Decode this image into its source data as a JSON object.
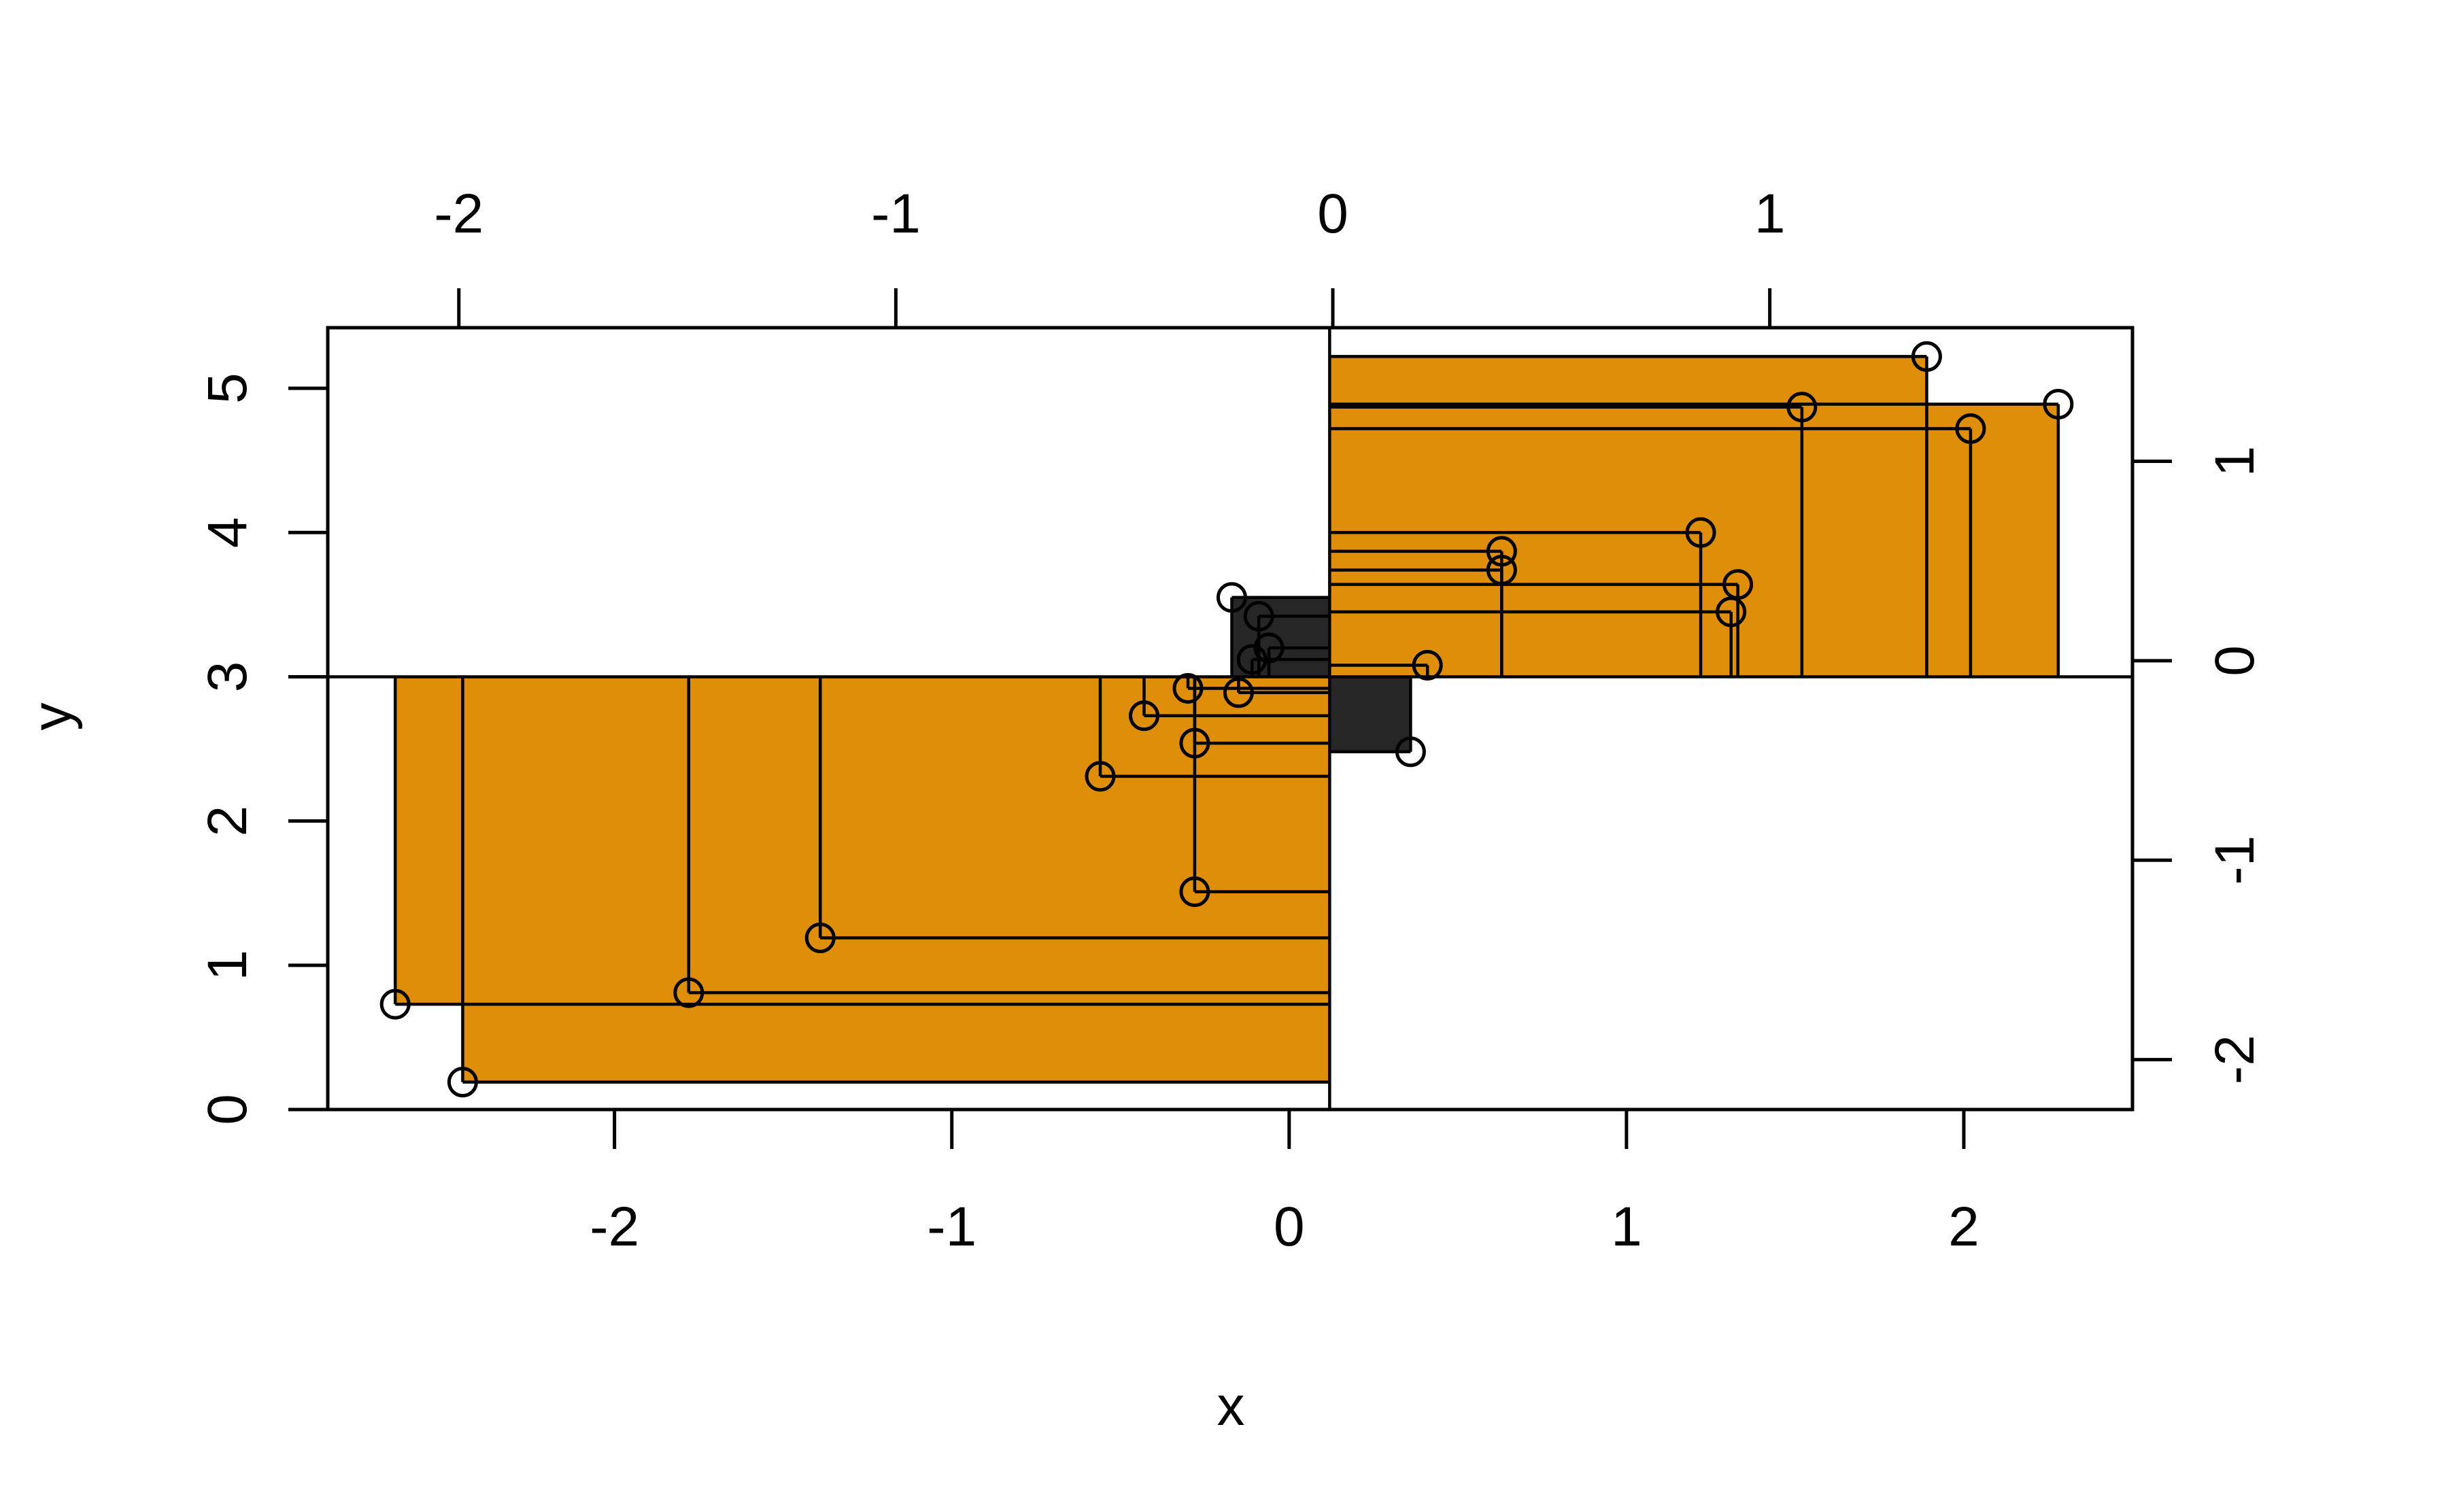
{
  "chart_data": {
    "type": "scatter",
    "title": "",
    "xlabel": "x",
    "ylabel": "y",
    "xlim": [
      -2.85,
      2.5
    ],
    "ylim": [
      0,
      5.42
    ],
    "top_xlim": [
      -2.3,
      1.83
    ],
    "right_ylim": [
      -2.25,
      1.67
    ],
    "pivot": {
      "x": 0.12,
      "y": 3.0
    },
    "bottom_ticks": [
      {
        "value": -2,
        "label": "-2"
      },
      {
        "value": -1,
        "label": "-1"
      },
      {
        "value": 0,
        "label": "0"
      },
      {
        "value": 1,
        "label": "1"
      },
      {
        "value": 2,
        "label": "2"
      }
    ],
    "left_ticks": [
      {
        "value": 0,
        "label": "0"
      },
      {
        "value": 1,
        "label": "1"
      },
      {
        "value": 2,
        "label": "2"
      },
      {
        "value": 3,
        "label": "3"
      },
      {
        "value": 4,
        "label": "4"
      },
      {
        "value": 5,
        "label": "5"
      }
    ],
    "top_ticks": [
      {
        "value": -2,
        "label": "-2"
      },
      {
        "value": -1,
        "label": "-1"
      },
      {
        "value": 0,
        "label": "0"
      },
      {
        "value": 1,
        "label": "1"
      }
    ],
    "right_ticks": [
      {
        "value": -2,
        "label": "-2"
      },
      {
        "value": -1,
        "label": "-1"
      },
      {
        "value": 0,
        "label": "0"
      },
      {
        "value": 1,
        "label": "1"
      }
    ],
    "colors": {
      "positive": "#DF8E0A",
      "negative": "#262626",
      "ink": "#000000",
      "background": "#ffffff"
    },
    "points": [
      {
        "x": 1.89,
        "y": 5.22
      },
      {
        "x": 2.28,
        "y": 4.89
      },
      {
        "x": 1.52,
        "y": 4.87
      },
      {
        "x": 2.02,
        "y": 4.72
      },
      {
        "x": 1.22,
        "y": 4.0
      },
      {
        "x": 0.63,
        "y": 3.87
      },
      {
        "x": 0.63,
        "y": 3.74
      },
      {
        "x": 1.33,
        "y": 3.64
      },
      {
        "x": 1.31,
        "y": 3.45
      },
      {
        "x": 0.41,
        "y": 3.08
      },
      {
        "x": 0.36,
        "y": 2.48
      },
      {
        "x": -0.17,
        "y": 3.55
      },
      {
        "x": -0.09,
        "y": 3.42
      },
      {
        "x": -0.06,
        "y": 3.2
      },
      {
        "x": -0.11,
        "y": 3.12
      },
      {
        "x": -0.3,
        "y": 2.92
      },
      {
        "x": -0.15,
        "y": 2.89
      },
      {
        "x": -0.43,
        "y": 2.73
      },
      {
        "x": -0.28,
        "y": 2.54
      },
      {
        "x": -0.56,
        "y": 2.31
      },
      {
        "x": -0.28,
        "y": 1.51
      },
      {
        "x": -1.39,
        "y": 1.19
      },
      {
        "x": -1.78,
        "y": 0.81
      },
      {
        "x": -2.65,
        "y": 0.73
      },
      {
        "x": -2.45,
        "y": 0.19
      }
    ]
  }
}
